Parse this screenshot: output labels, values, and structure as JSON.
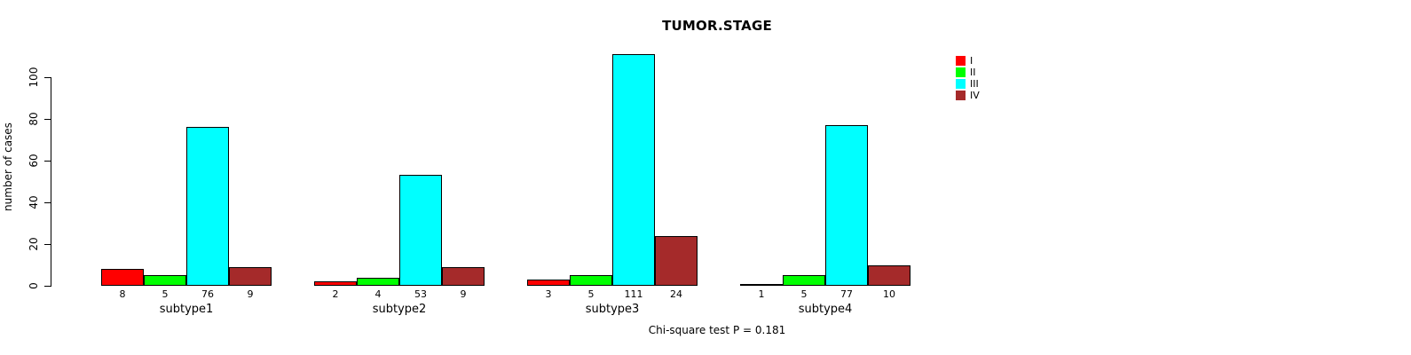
{
  "chart_data": {
    "type": "bar",
    "title": "TUMOR.STAGE",
    "ylabel": "number of cases",
    "xlabel": "",
    "ylim": [
      0,
      115
    ],
    "yticks": [
      0,
      20,
      40,
      60,
      80,
      100
    ],
    "grid": false,
    "legend_position": "top-right",
    "categories": [
      "subtype1",
      "subtype2",
      "subtype3",
      "subtype4"
    ],
    "series": [
      {
        "name": "I",
        "color": "#FF0000",
        "values": [
          8,
          2,
          3,
          1
        ]
      },
      {
        "name": "II",
        "color": "#00FF00",
        "values": [
          5,
          4,
          5,
          5
        ]
      },
      {
        "name": "III",
        "color": "#00FFFF",
        "values": [
          76,
          53,
          111,
          77
        ]
      },
      {
        "name": "IV",
        "color": "#A52A2A",
        "values": [
          9,
          9,
          24,
          10
        ]
      }
    ],
    "annotation": "Chi-square test P = 0.181"
  }
}
